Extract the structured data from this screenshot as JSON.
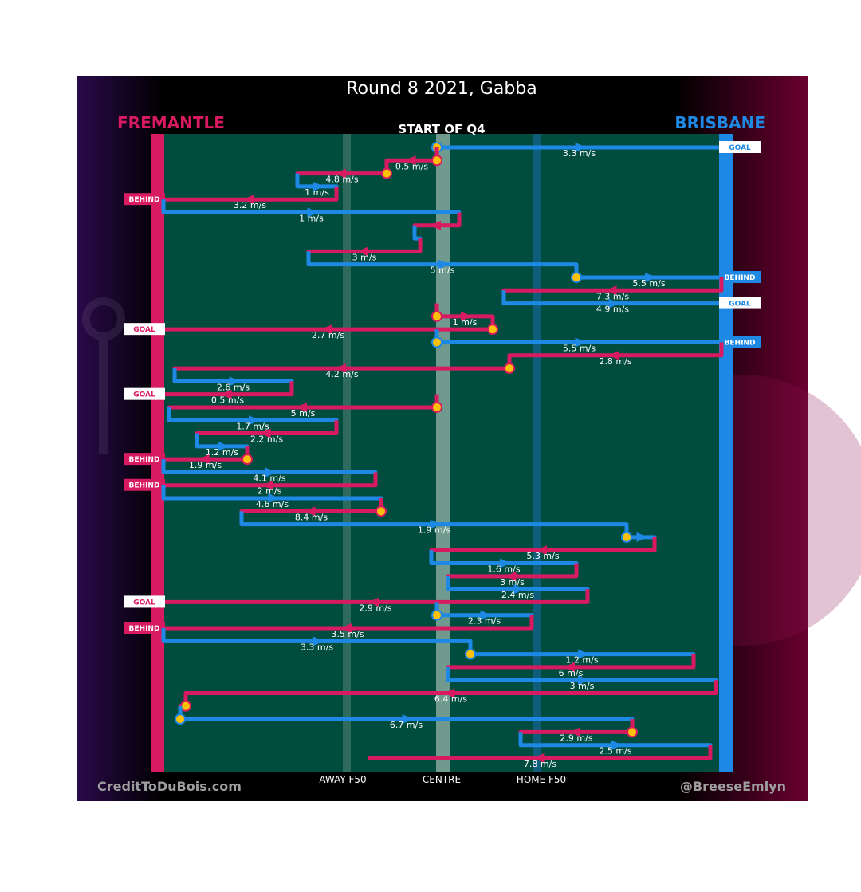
{
  "chart_data": {
    "type": "line",
    "title": "Round 8 2021, Gabba",
    "subtitle": "START OF Q4",
    "teams": {
      "away": "FREMANTLE",
      "home": "BRISBANE"
    },
    "x_ticks": [
      "AWAY F50",
      "CENTRE",
      "HOME F50"
    ],
    "credits": {
      "left": "CreditToDuBois.com",
      "right": "@BreeseEmlyn"
    },
    "colors": {
      "away": "#d81b60",
      "home": "#1e88e5",
      "field": "#004d40",
      "bg": "#000000",
      "marker": "#ffc107"
    },
    "x_axis": "field position, 0 = Fremantle goal line, 100 = Brisbane goal line",
    "chains": [
      {
        "from": 49,
        "to": 100,
        "team": "home",
        "speed": "3.3 m/s",
        "start": "ball-up",
        "result": "GOAL"
      },
      {
        "from": 49,
        "to": 40,
        "team": "away",
        "speed": "0.5 m/s",
        "start": "ball-up"
      },
      {
        "from": 40,
        "to": 24,
        "team": "away",
        "speed": "4.8 m/s",
        "start": "ball-up"
      },
      {
        "from": 24,
        "to": 31,
        "team": "home",
        "speed": "1 m/s"
      },
      {
        "from": 31,
        "to": 0,
        "team": "away",
        "speed": "3.2 m/s",
        "result": "BEHIND"
      },
      {
        "from": 0,
        "to": 53,
        "team": "home",
        "speed": "1 m/s"
      },
      {
        "from": 53,
        "to": 45,
        "team": "away",
        "speed": ""
      },
      {
        "from": 45,
        "to": 46,
        "team": "home",
        "speed": ""
      },
      {
        "from": 46,
        "to": 26,
        "team": "away",
        "speed": "3 m/s"
      },
      {
        "from": 26,
        "to": 74,
        "team": "home",
        "speed": "5 m/s"
      },
      {
        "from": 74,
        "to": 100,
        "team": "home",
        "speed": "5.5 m/s",
        "start": "ball-up",
        "result": "BEHIND"
      },
      {
        "from": 100,
        "to": 61,
        "team": "away",
        "speed": "7.3 m/s"
      },
      {
        "from": 61,
        "to": 100,
        "team": "home",
        "speed": "4.9 m/s",
        "result": "GOAL"
      },
      {
        "from": 49,
        "to": 59,
        "team": "away",
        "speed": "1 m/s",
        "start": "ball-up"
      },
      {
        "from": 59,
        "to": 0,
        "team": "away",
        "speed": "2.7 m/s",
        "start": "ball-up",
        "result": "GOAL"
      },
      {
        "from": 49,
        "to": 100,
        "team": "home",
        "speed": "5.5 m/s",
        "start": "ball-up",
        "result": "BEHIND"
      },
      {
        "from": 100,
        "to": 62,
        "team": "away",
        "speed": "2.8 m/s"
      },
      {
        "from": 62,
        "to": 2,
        "team": "away",
        "speed": "4.2 m/s",
        "start": "ball-up"
      },
      {
        "from": 2,
        "to": 23,
        "team": "home",
        "speed": "2.6 m/s"
      },
      {
        "from": 23,
        "to": 0,
        "team": "away",
        "speed": "0.5 m/s",
        "result": "GOAL"
      },
      {
        "from": 49,
        "to": 1,
        "team": "away",
        "speed": "5 m/s",
        "start": "ball-up"
      },
      {
        "from": 1,
        "to": 31,
        "team": "home",
        "speed": "1.7 m/s"
      },
      {
        "from": 31,
        "to": 6,
        "team": "away",
        "speed": "2.2 m/s"
      },
      {
        "from": 6,
        "to": 15,
        "team": "home",
        "speed": "1.2 m/s"
      },
      {
        "from": 15,
        "to": 0,
        "team": "away",
        "speed": "1.9 m/s",
        "start": "ball-up",
        "result": "BEHIND"
      },
      {
        "from": 0,
        "to": 38,
        "team": "home",
        "speed": "4.1 m/s"
      },
      {
        "from": 38,
        "to": 0,
        "team": "away",
        "speed": "2 m/s",
        "result": "BEHIND"
      },
      {
        "from": 0,
        "to": 39,
        "team": "home",
        "speed": "4.6 m/s"
      },
      {
        "from": 39,
        "to": 14,
        "team": "away",
        "speed": "8.4 m/s",
        "start": "ball-up"
      },
      {
        "from": 14,
        "to": 83,
        "team": "home",
        "speed": "1.9 m/s"
      },
      {
        "from": 83,
        "to": 88,
        "team": "home",
        "speed": "",
        "start": "ball-up"
      },
      {
        "from": 88,
        "to": 48,
        "team": "away",
        "speed": "5.3 m/s"
      },
      {
        "from": 48,
        "to": 74,
        "team": "home",
        "speed": "1.6 m/s"
      },
      {
        "from": 74,
        "to": 51,
        "team": "away",
        "speed": "3 m/s"
      },
      {
        "from": 51,
        "to": 76,
        "team": "home",
        "speed": "2.4 m/s"
      },
      {
        "from": 76,
        "to": 0,
        "team": "away",
        "speed": "2.9 m/s",
        "result": "GOAL"
      },
      {
        "from": 49,
        "to": 66,
        "team": "home",
        "speed": "2.3 m/s",
        "start": "ball-up"
      },
      {
        "from": 66,
        "to": 0,
        "team": "away",
        "speed": "3.5 m/s",
        "result": "BEHIND"
      },
      {
        "from": 0,
        "to": 55,
        "team": "home",
        "speed": "3.3 m/s"
      },
      {
        "from": 55,
        "to": 95,
        "team": "home",
        "speed": "1.2 m/s",
        "start": "ball-up"
      },
      {
        "from": 95,
        "to": 51,
        "team": "away",
        "speed": "6 m/s"
      },
      {
        "from": 51,
        "to": 99,
        "team": "home",
        "speed": "3 m/s"
      },
      {
        "from": 99,
        "to": 4,
        "team": "away",
        "speed": "6.4 m/s"
      },
      {
        "from": 4,
        "to": 3,
        "team": "away",
        "speed": "",
        "start": "ball-up"
      },
      {
        "from": 3,
        "to": 84,
        "team": "home",
        "speed": "6.7 m/s",
        "start": "ball-up"
      },
      {
        "from": 84,
        "to": 64,
        "team": "away",
        "speed": "2.9 m/s",
        "start": "ball-up"
      },
      {
        "from": 64,
        "to": 98,
        "team": "home",
        "speed": "2.5 m/s"
      },
      {
        "from": 98,
        "to": 37,
        "team": "away",
        "speed": "7.8 m/s"
      }
    ]
  }
}
